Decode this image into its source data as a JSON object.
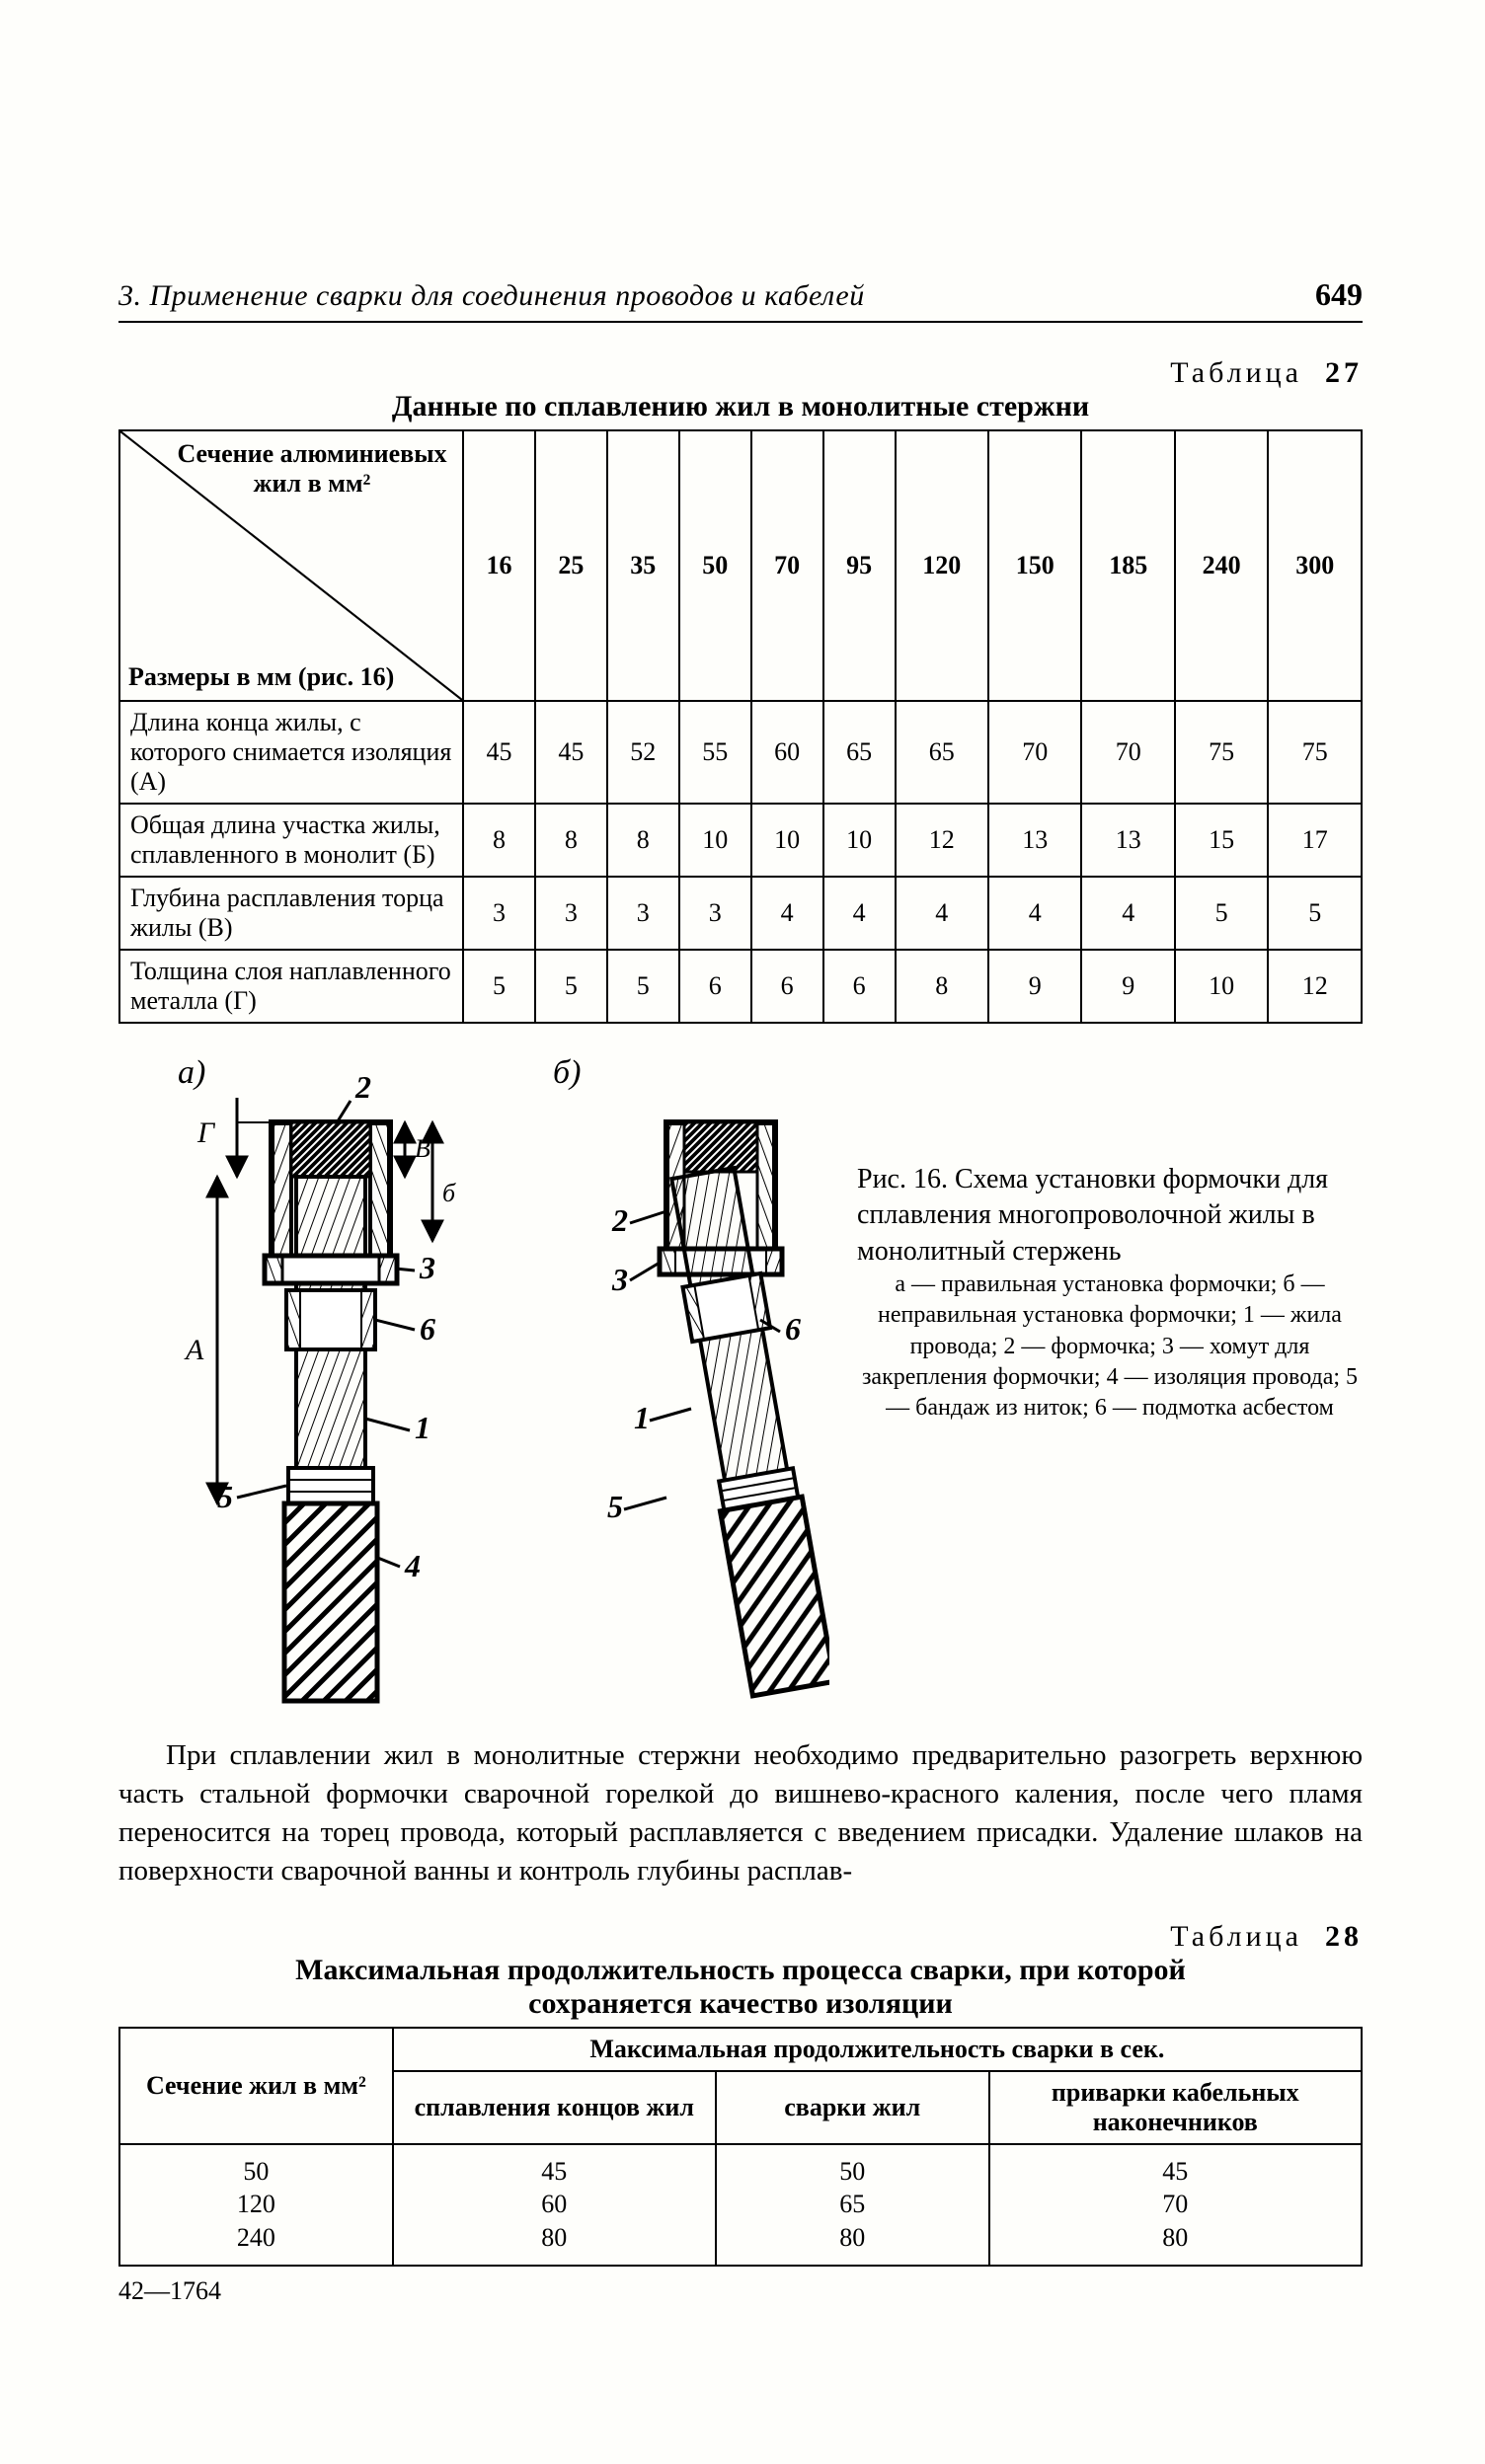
{
  "page": {
    "running_title": "3. Применение сварки для соединения проводов и кабелей",
    "page_number": "649",
    "footer": "42—1764"
  },
  "table27": {
    "label_word": "Таблица",
    "label_num": "27",
    "caption": "Данные по сплавлению жил в монолитные стержни",
    "diag_top": "Сечение алюминиевых жил в мм²",
    "diag_bottom": "Размеры в мм (рис. 16)",
    "columns": [
      "16",
      "25",
      "35",
      "50",
      "70",
      "95",
      "120",
      "150",
      "185",
      "240",
      "300"
    ],
    "rows": [
      {
        "label": "Длина конца жилы, с которого снимается изоляция (А)",
        "vals": [
          "45",
          "45",
          "52",
          "55",
          "60",
          "65",
          "65",
          "70",
          "70",
          "75",
          "75"
        ]
      },
      {
        "label": "Общая длина участка жилы, сплавленного в монолит (Б)",
        "vals": [
          "8",
          "8",
          "8",
          "10",
          "10",
          "10",
          "12",
          "13",
          "13",
          "15",
          "17"
        ]
      },
      {
        "label": "Глубина расплавления торца жилы (В)",
        "vals": [
          "3",
          "3",
          "3",
          "3",
          "4",
          "4",
          "4",
          "4",
          "4",
          "5",
          "5"
        ]
      },
      {
        "label": "Толщина слоя наплавленного металла (Г)",
        "vals": [
          "5",
          "5",
          "5",
          "6",
          "6",
          "6",
          "8",
          "9",
          "9",
          "10",
          "12"
        ]
      }
    ]
  },
  "figure16": {
    "label_a": "а)",
    "label_b": "б)",
    "callout_1": "1",
    "callout_2": "2",
    "callout_3": "3",
    "callout_4": "4",
    "callout_5": "5",
    "callout_6": "6",
    "dim_G": "Г",
    "dim_B": "В",
    "dim_b": "б",
    "dim_A": "А",
    "caption_main": "Рис. 16. Схема установки формочки для сплавления многопроволочной жилы в монолитный стержень",
    "caption_key": "а — правильная установка формочки; б — неправильная установка формочки; 1 — жила провода; 2 — формочка; 3 — хомут для закрепления формочки; 4 — изоляция провода; 5 — бандаж из ниток; 6 — подмотка асбестом"
  },
  "paragraph": "При сплавлении жил в монолитные стержни необходимо предварительно разогреть верхнюю часть стальной формочки сварочной горелкой до вишнево-красного каления, после чего пламя переносится на торец провода, который расплавляется с введением присадки. Удаление шлаков на поверхности сварочной ванны и контроль глубины расплав-",
  "table28": {
    "label_word": "Таблица",
    "label_num": "28",
    "caption1": "Максимальная продолжительность процесса сварки, при которой",
    "caption2": "сохраняется качество изоляции",
    "head_col0": "Сечение жил в мм²",
    "head_span": "Максимальная продолжительность сварки в сек.",
    "head_c1": "сплавления концов жил",
    "head_c2": "сварки жил",
    "head_c3": "приварки кабельных наконечников",
    "col0": [
      "50",
      "120",
      "240"
    ],
    "col1": [
      "45",
      "60",
      "80"
    ],
    "col2": [
      "50",
      "65",
      "80"
    ],
    "col3": [
      "45",
      "70",
      "80"
    ]
  },
  "colors": {
    "ink": "#000000",
    "paper": "#fefefb",
    "hatch": "#111111"
  }
}
